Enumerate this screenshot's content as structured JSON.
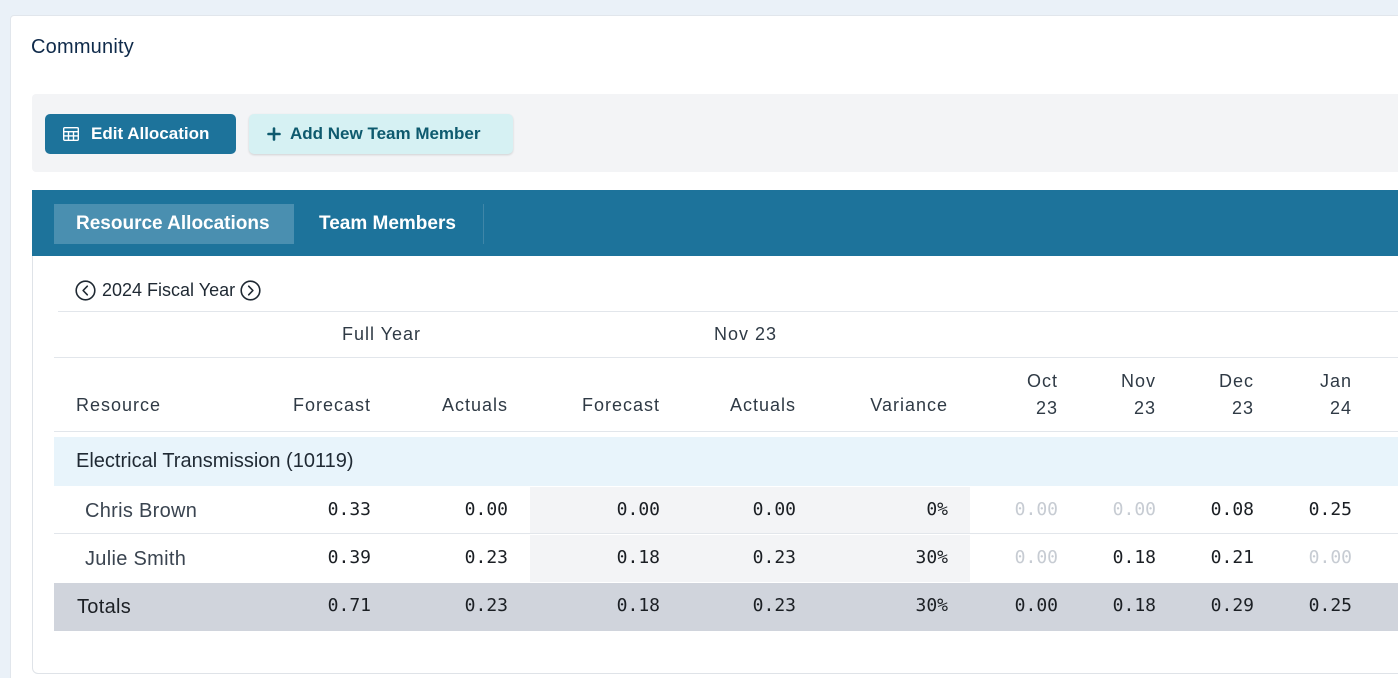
{
  "page": {
    "title": "Community"
  },
  "toolbar": {
    "edit_allocation": "Edit Allocation",
    "add_member": "Add New Team Member"
  },
  "tabs": [
    {
      "label": "Resource Allocations",
      "active": true
    },
    {
      "label": "Team Members",
      "active": false
    }
  ],
  "fiscal_year": {
    "label": "2024 Fiscal Year"
  },
  "table": {
    "group_headers": {
      "full_year": "Full Year",
      "month": "Nov 23"
    },
    "columns": {
      "resource": "Resource",
      "fy_forecast": "Forecast",
      "fy_actuals": "Actuals",
      "m_forecast": "Forecast",
      "m_actuals": "Actuals",
      "m_variance": "Variance",
      "oct": [
        "Oct",
        "23"
      ],
      "nov": [
        "Nov",
        "23"
      ],
      "dec": [
        "Dec",
        "23"
      ],
      "jan": [
        "Jan",
        "24"
      ]
    },
    "group": {
      "name": "Electrical Transmission (10119)"
    },
    "rows": [
      {
        "name": "Chris Brown",
        "fy_forecast": "0.33",
        "fy_actuals": "0.00",
        "m_forecast": "0.00",
        "m_actuals": "0.00",
        "m_variance": "0%",
        "oct": "0.00",
        "nov": "0.00",
        "dec": "0.08",
        "jan": "0.25"
      },
      {
        "name": "Julie Smith",
        "fy_forecast": "0.39",
        "fy_actuals": "0.23",
        "m_forecast": "0.18",
        "m_actuals": "0.23",
        "m_variance": "30%",
        "oct": "0.00",
        "nov": "0.18",
        "dec": "0.21",
        "jan": "0.00"
      }
    ],
    "totals": {
      "name": "Totals",
      "fy_forecast": "0.71",
      "fy_actuals": "0.23",
      "m_forecast": "0.18",
      "m_actuals": "0.23",
      "m_variance": "30%",
      "oct": "0.00",
      "nov": "0.18",
      "dec": "0.29",
      "jan": "0.25"
    }
  },
  "colors": {
    "primary": "#1d739b",
    "secondary_bg": "#d6f1f3",
    "group_row_bg": "#e8f4fb",
    "totals_bg": "#d0d4dc"
  },
  "icons": {
    "edit": "table-icon",
    "add": "plus-icon",
    "prev": "chevron-left-circle-icon",
    "next": "chevron-right-circle-icon"
  }
}
